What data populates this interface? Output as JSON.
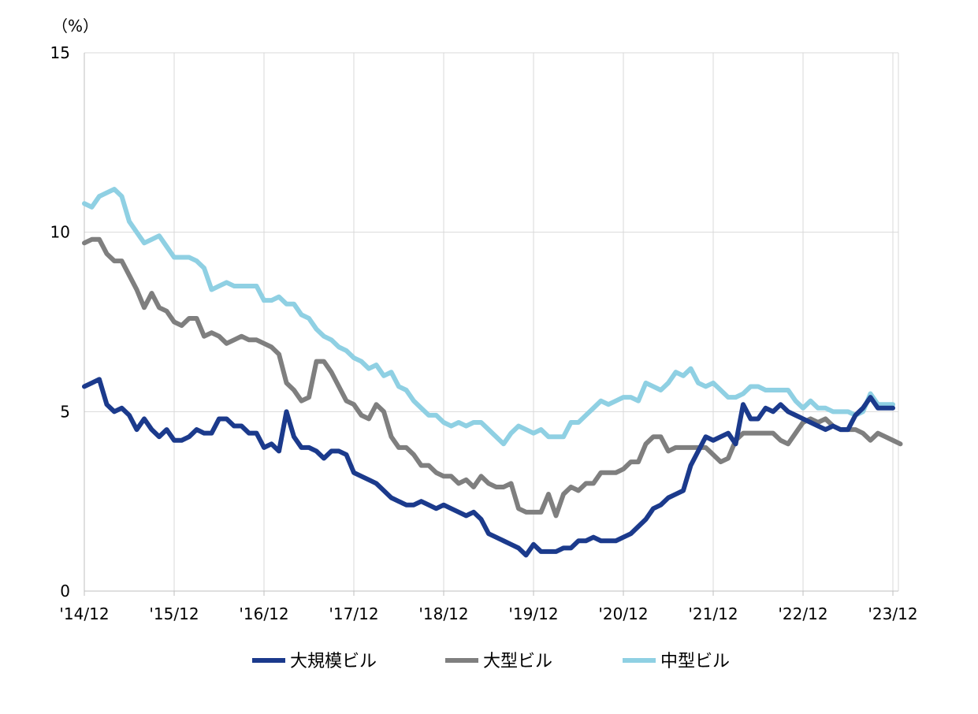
{
  "chart_data": {
    "type": "line",
    "unit_label": "（%）",
    "ylim": [
      0,
      15
    ],
    "y_ticks": [
      "0",
      "5",
      "10",
      "15"
    ],
    "x_tick_labels": [
      "'14/12",
      "'15/12",
      "'16/12",
      "'17/12",
      "'18/12",
      "'19/12",
      "'20/12",
      "'21/12",
      "'22/12",
      "'23/12"
    ],
    "x_range": [
      "2014-12",
      "2023-12"
    ],
    "grid": "vertical and horizontal",
    "legend_position": "bottom",
    "series": [
      {
        "name": "大規模ビル",
        "color": "#1b3a8c",
        "values": [
          5.7,
          5.8,
          5.9,
          5.2,
          5.0,
          5.1,
          4.9,
          4.5,
          4.8,
          4.5,
          4.3,
          4.5,
          4.2,
          4.2,
          4.3,
          4.5,
          4.4,
          4.4,
          4.8,
          4.8,
          4.6,
          4.6,
          4.4,
          4.4,
          4.0,
          4.1,
          3.9,
          5.0,
          4.3,
          4.0,
          4.0,
          3.9,
          3.7,
          3.9,
          3.9,
          3.8,
          3.3,
          3.2,
          3.1,
          3.0,
          2.8,
          2.6,
          2.5,
          2.4,
          2.4,
          2.5,
          2.4,
          2.3,
          2.4,
          2.3,
          2.2,
          2.1,
          2.2,
          2.0,
          1.6,
          1.5,
          1.4,
          1.3,
          1.2,
          1.0,
          1.3,
          1.1,
          1.1,
          1.1,
          1.2,
          1.2,
          1.4,
          1.4,
          1.5,
          1.4,
          1.4,
          1.4,
          1.5,
          1.6,
          1.8,
          2.0,
          2.3,
          2.4,
          2.6,
          2.7,
          2.8,
          3.5,
          3.9,
          4.3,
          4.2,
          4.3,
          4.4,
          4.1,
          5.2,
          4.8,
          4.8,
          5.1,
          5.0,
          5.2,
          5.0,
          4.9,
          4.8,
          4.7,
          4.6,
          4.5,
          4.6,
          4.5,
          4.5,
          4.9,
          5.1,
          5.4,
          5.1,
          5.1,
          5.1
        ]
      },
      {
        "name": "大型ビル",
        "color": "#7f7f7f",
        "values": [
          9.7,
          9.8,
          9.8,
          9.4,
          9.2,
          9.2,
          8.8,
          8.4,
          7.9,
          8.3,
          7.9,
          7.8,
          7.5,
          7.4,
          7.6,
          7.6,
          7.1,
          7.2,
          7.1,
          6.9,
          7.0,
          7.1,
          7.0,
          7.0,
          6.9,
          6.8,
          6.6,
          5.8,
          5.6,
          5.3,
          5.4,
          6.4,
          6.4,
          6.1,
          5.7,
          5.3,
          5.2,
          4.9,
          4.8,
          5.2,
          5.0,
          4.3,
          4.0,
          4.0,
          3.8,
          3.5,
          3.5,
          3.3,
          3.2,
          3.2,
          3.0,
          3.1,
          2.9,
          3.2,
          3.0,
          2.9,
          2.9,
          3.0,
          2.3,
          2.2,
          2.2,
          2.2,
          2.7,
          2.1,
          2.7,
          2.9,
          2.8,
          3.0,
          3.0,
          3.3,
          3.3,
          3.3,
          3.4,
          3.6,
          3.6,
          4.1,
          4.3,
          4.3,
          3.9,
          4.0,
          4.0,
          4.0,
          4.0,
          4.0,
          3.8,
          3.6,
          3.7,
          4.2,
          4.4,
          4.4,
          4.4,
          4.4,
          4.4,
          4.2,
          4.1,
          4.4,
          4.7,
          4.8,
          4.7,
          4.8,
          4.6,
          4.5,
          4.5,
          4.5,
          4.4,
          4.2,
          4.4,
          4.3,
          4.2,
          4.1
        ]
      },
      {
        "name": "中型ビル",
        "color": "#8fd0e3",
        "values": [
          10.8,
          10.7,
          11.0,
          11.1,
          11.2,
          11.0,
          10.3,
          10.0,
          9.7,
          9.8,
          9.9,
          9.6,
          9.3,
          9.3,
          9.3,
          9.2,
          9.0,
          8.4,
          8.5,
          8.6,
          8.5,
          8.5,
          8.5,
          8.5,
          8.1,
          8.1,
          8.2,
          8.0,
          8.0,
          7.7,
          7.6,
          7.3,
          7.1,
          7.0,
          6.8,
          6.7,
          6.5,
          6.4,
          6.2,
          6.3,
          6.0,
          6.1,
          5.7,
          5.6,
          5.3,
          5.1,
          4.9,
          4.9,
          4.7,
          4.6,
          4.7,
          4.6,
          4.7,
          4.7,
          4.5,
          4.3,
          4.1,
          4.4,
          4.6,
          4.5,
          4.4,
          4.5,
          4.3,
          4.3,
          4.3,
          4.7,
          4.7,
          4.9,
          5.1,
          5.3,
          5.2,
          5.3,
          5.4,
          5.4,
          5.3,
          5.8,
          5.7,
          5.6,
          5.8,
          6.1,
          6.0,
          6.2,
          5.8,
          5.7,
          5.8,
          5.6,
          5.4,
          5.4,
          5.5,
          5.7,
          5.7,
          5.6,
          5.6,
          5.6,
          5.6,
          5.3,
          5.1,
          5.3,
          5.1,
          5.1,
          5.0,
          5.0,
          5.0,
          4.9,
          5.0,
          5.5,
          5.2,
          5.2,
          5.2
        ]
      }
    ]
  }
}
